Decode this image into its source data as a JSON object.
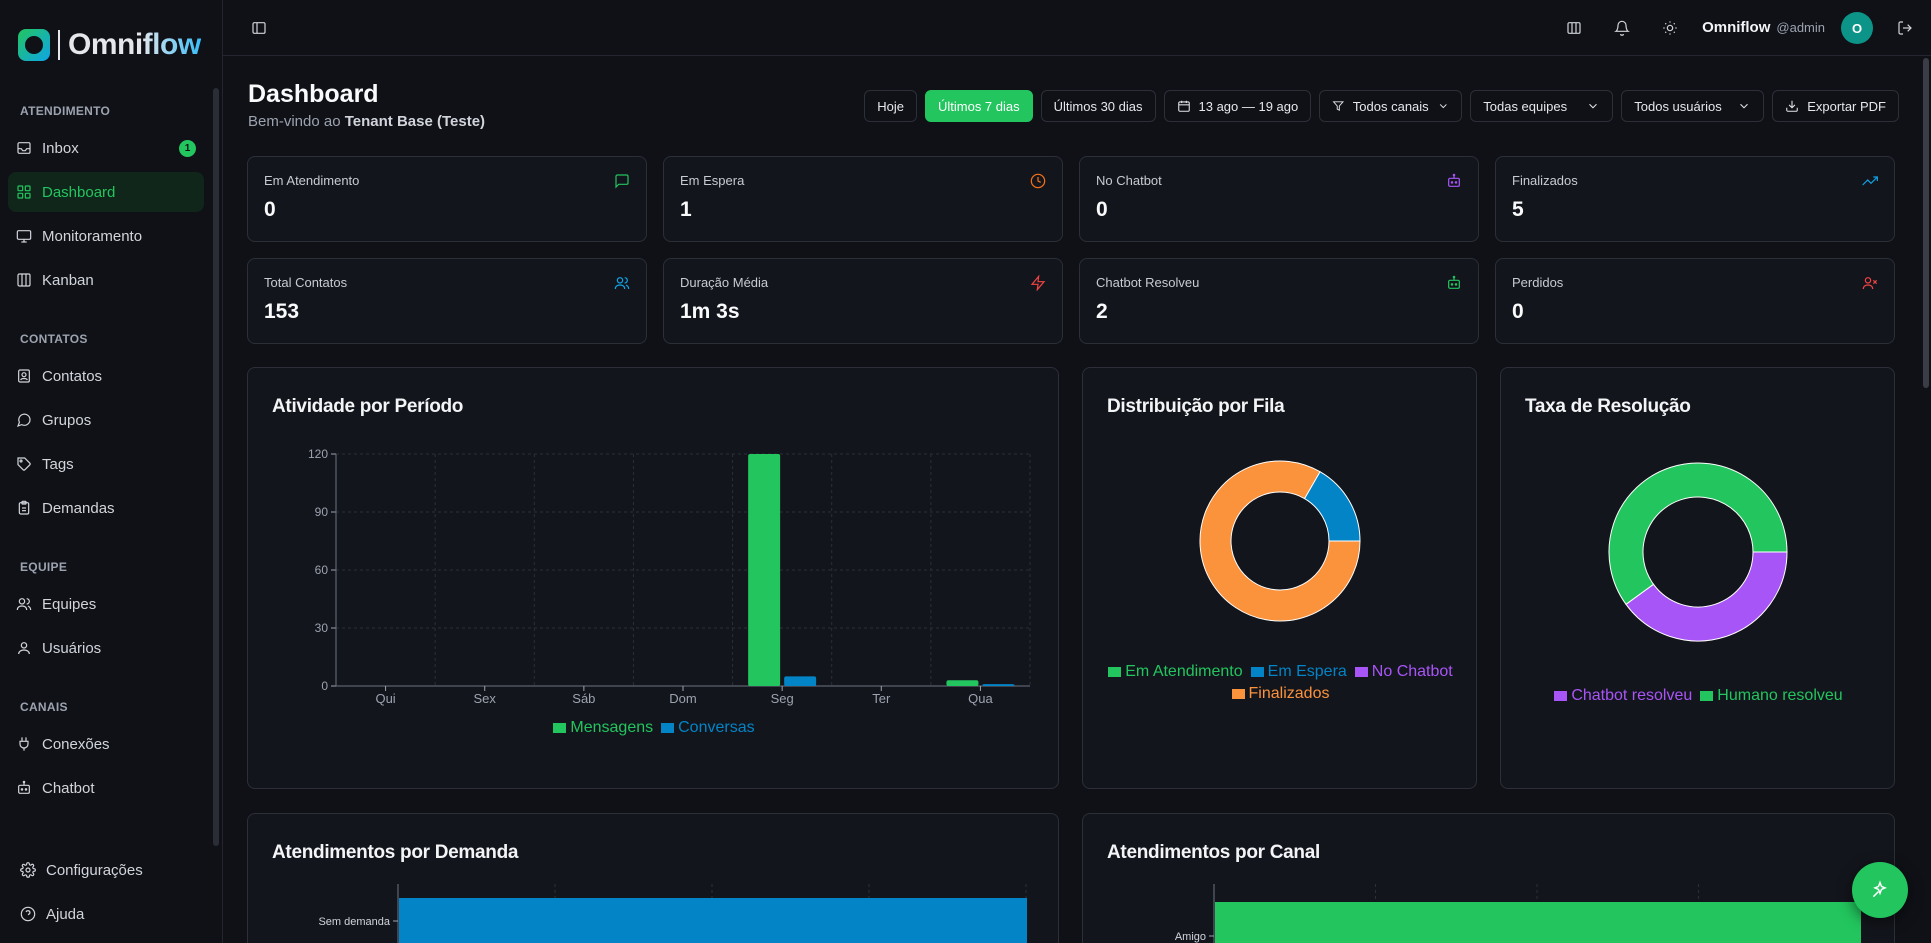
{
  "app": {
    "name": "Omniflow"
  },
  "sidebar": {
    "sections": [
      {
        "title": "ATENDIMENTO",
        "items": [
          {
            "label": "Inbox",
            "icon": "inbox-icon",
            "badge": "1"
          },
          {
            "label": "Dashboard",
            "icon": "dashboard-icon",
            "active": true
          },
          {
            "label": "Monitoramento",
            "icon": "monitor-icon"
          },
          {
            "label": "Kanban",
            "icon": "kanban-icon"
          }
        ]
      },
      {
        "title": "CONTATOS",
        "items": [
          {
            "label": "Contatos",
            "icon": "contacts-icon"
          },
          {
            "label": "Grupos",
            "icon": "chat-bubble-icon"
          },
          {
            "label": "Tags",
            "icon": "tag-icon"
          },
          {
            "label": "Demandas",
            "icon": "clipboard-icon"
          }
        ]
      },
      {
        "title": "EQUIPE",
        "items": [
          {
            "label": "Equipes",
            "icon": "users-icon"
          },
          {
            "label": "Usuários",
            "icon": "user-icon"
          }
        ]
      },
      {
        "title": "CANAIS",
        "items": [
          {
            "label": "Conexões",
            "icon": "plug-icon"
          },
          {
            "label": "Chatbot",
            "icon": "bot-icon"
          }
        ]
      }
    ],
    "footer": [
      {
        "label": "Configurações",
        "icon": "gear-icon"
      },
      {
        "label": "Ajuda",
        "icon": "help-icon"
      }
    ]
  },
  "topbar": {
    "user_name": "Omniflow",
    "user_handle": "@admin",
    "avatar_initial": "O"
  },
  "page": {
    "title": "Dashboard",
    "subtitle_prefix": "Bem-vindo ao",
    "tenant": "Tenant Base (Teste)"
  },
  "filters": {
    "today": "Hoje",
    "last7": "Últimos 7 dias",
    "last30": "Últimos 30 dias",
    "date_range": "13 ago — 19 ago",
    "channels": "Todos canais",
    "teams": "Todas equipes",
    "users": "Todos usuários",
    "export": "Exportar PDF"
  },
  "stats": [
    {
      "label": "Em Atendimento",
      "value": "0",
      "icon": "message-icon",
      "color": "#22c55e"
    },
    {
      "label": "Em Espera",
      "value": "1",
      "icon": "clock-icon",
      "color": "#f97316"
    },
    {
      "label": "No Chatbot",
      "value": "0",
      "icon": "bot-icon",
      "color": "#a855f7"
    },
    {
      "label": "Finalizados",
      "value": "5",
      "icon": "trending-up-icon",
      "color": "#0ea5e9"
    },
    {
      "label": "Total Contatos",
      "value": "153",
      "icon": "users-icon",
      "color": "#0ea5e9"
    },
    {
      "label": "Duração Média",
      "value": "1m 3s",
      "icon": "zap-icon",
      "color": "#ef4444"
    },
    {
      "label": "Chatbot Resolveu",
      "value": "2",
      "icon": "bot-icon",
      "color": "#22c55e"
    },
    {
      "label": "Perdidos",
      "value": "0",
      "icon": "user-x-icon",
      "color": "#ef4444"
    }
  ],
  "panels": {
    "activity": "Atividade por Período",
    "queue": "Distribuição por Fila",
    "resolution": "Taxa de Resolução",
    "demand": "Atendimentos por Demanda",
    "channel": "Atendimentos por Canal"
  },
  "chart_data": [
    {
      "type": "bar",
      "title": "Atividade por Período",
      "categories": [
        "Qui",
        "Sex",
        "Sáb",
        "Dom",
        "Seg",
        "Ter",
        "Qua"
      ],
      "series": [
        {
          "name": "Mensagens",
          "color": "#22c55e",
          "values": [
            0,
            0,
            0,
            0,
            120,
            0,
            3
          ]
        },
        {
          "name": "Conversas",
          "color": "#0284c7",
          "values": [
            0,
            0,
            0,
            0,
            5,
            0,
            1
          ]
        }
      ],
      "yticks": [
        0,
        30,
        60,
        90,
        120
      ],
      "ylim": [
        0,
        120
      ],
      "grid": true,
      "legend": "bottom"
    },
    {
      "type": "pie",
      "title": "Distribuição por Fila",
      "labels": [
        "Em Atendimento",
        "Em Espera",
        "No Chatbot",
        "Finalizados"
      ],
      "colors": [
        "#22c55e",
        "#0284c7",
        "#a855f7",
        "#fb923c"
      ],
      "values": [
        0,
        1,
        0,
        5
      ],
      "legend": "bottom"
    },
    {
      "type": "pie",
      "title": "Taxa de Resolução",
      "labels": [
        "Chatbot resolveu",
        "Humano resolveu"
      ],
      "colors": [
        "#a855f7",
        "#22c55e"
      ],
      "values": [
        2,
        3
      ],
      "legend": "bottom"
    },
    {
      "type": "bar",
      "title": "Atendimentos por Demanda",
      "orientation": "horizontal",
      "categories": [
        "Sem demanda"
      ],
      "values": [
        6
      ],
      "color": "#0284c7"
    },
    {
      "type": "bar",
      "title": "Atendimentos por Canal",
      "orientation": "horizontal",
      "categories": [
        "Amigo"
      ],
      "values": [
        6
      ],
      "color": "#22c55e"
    }
  ]
}
